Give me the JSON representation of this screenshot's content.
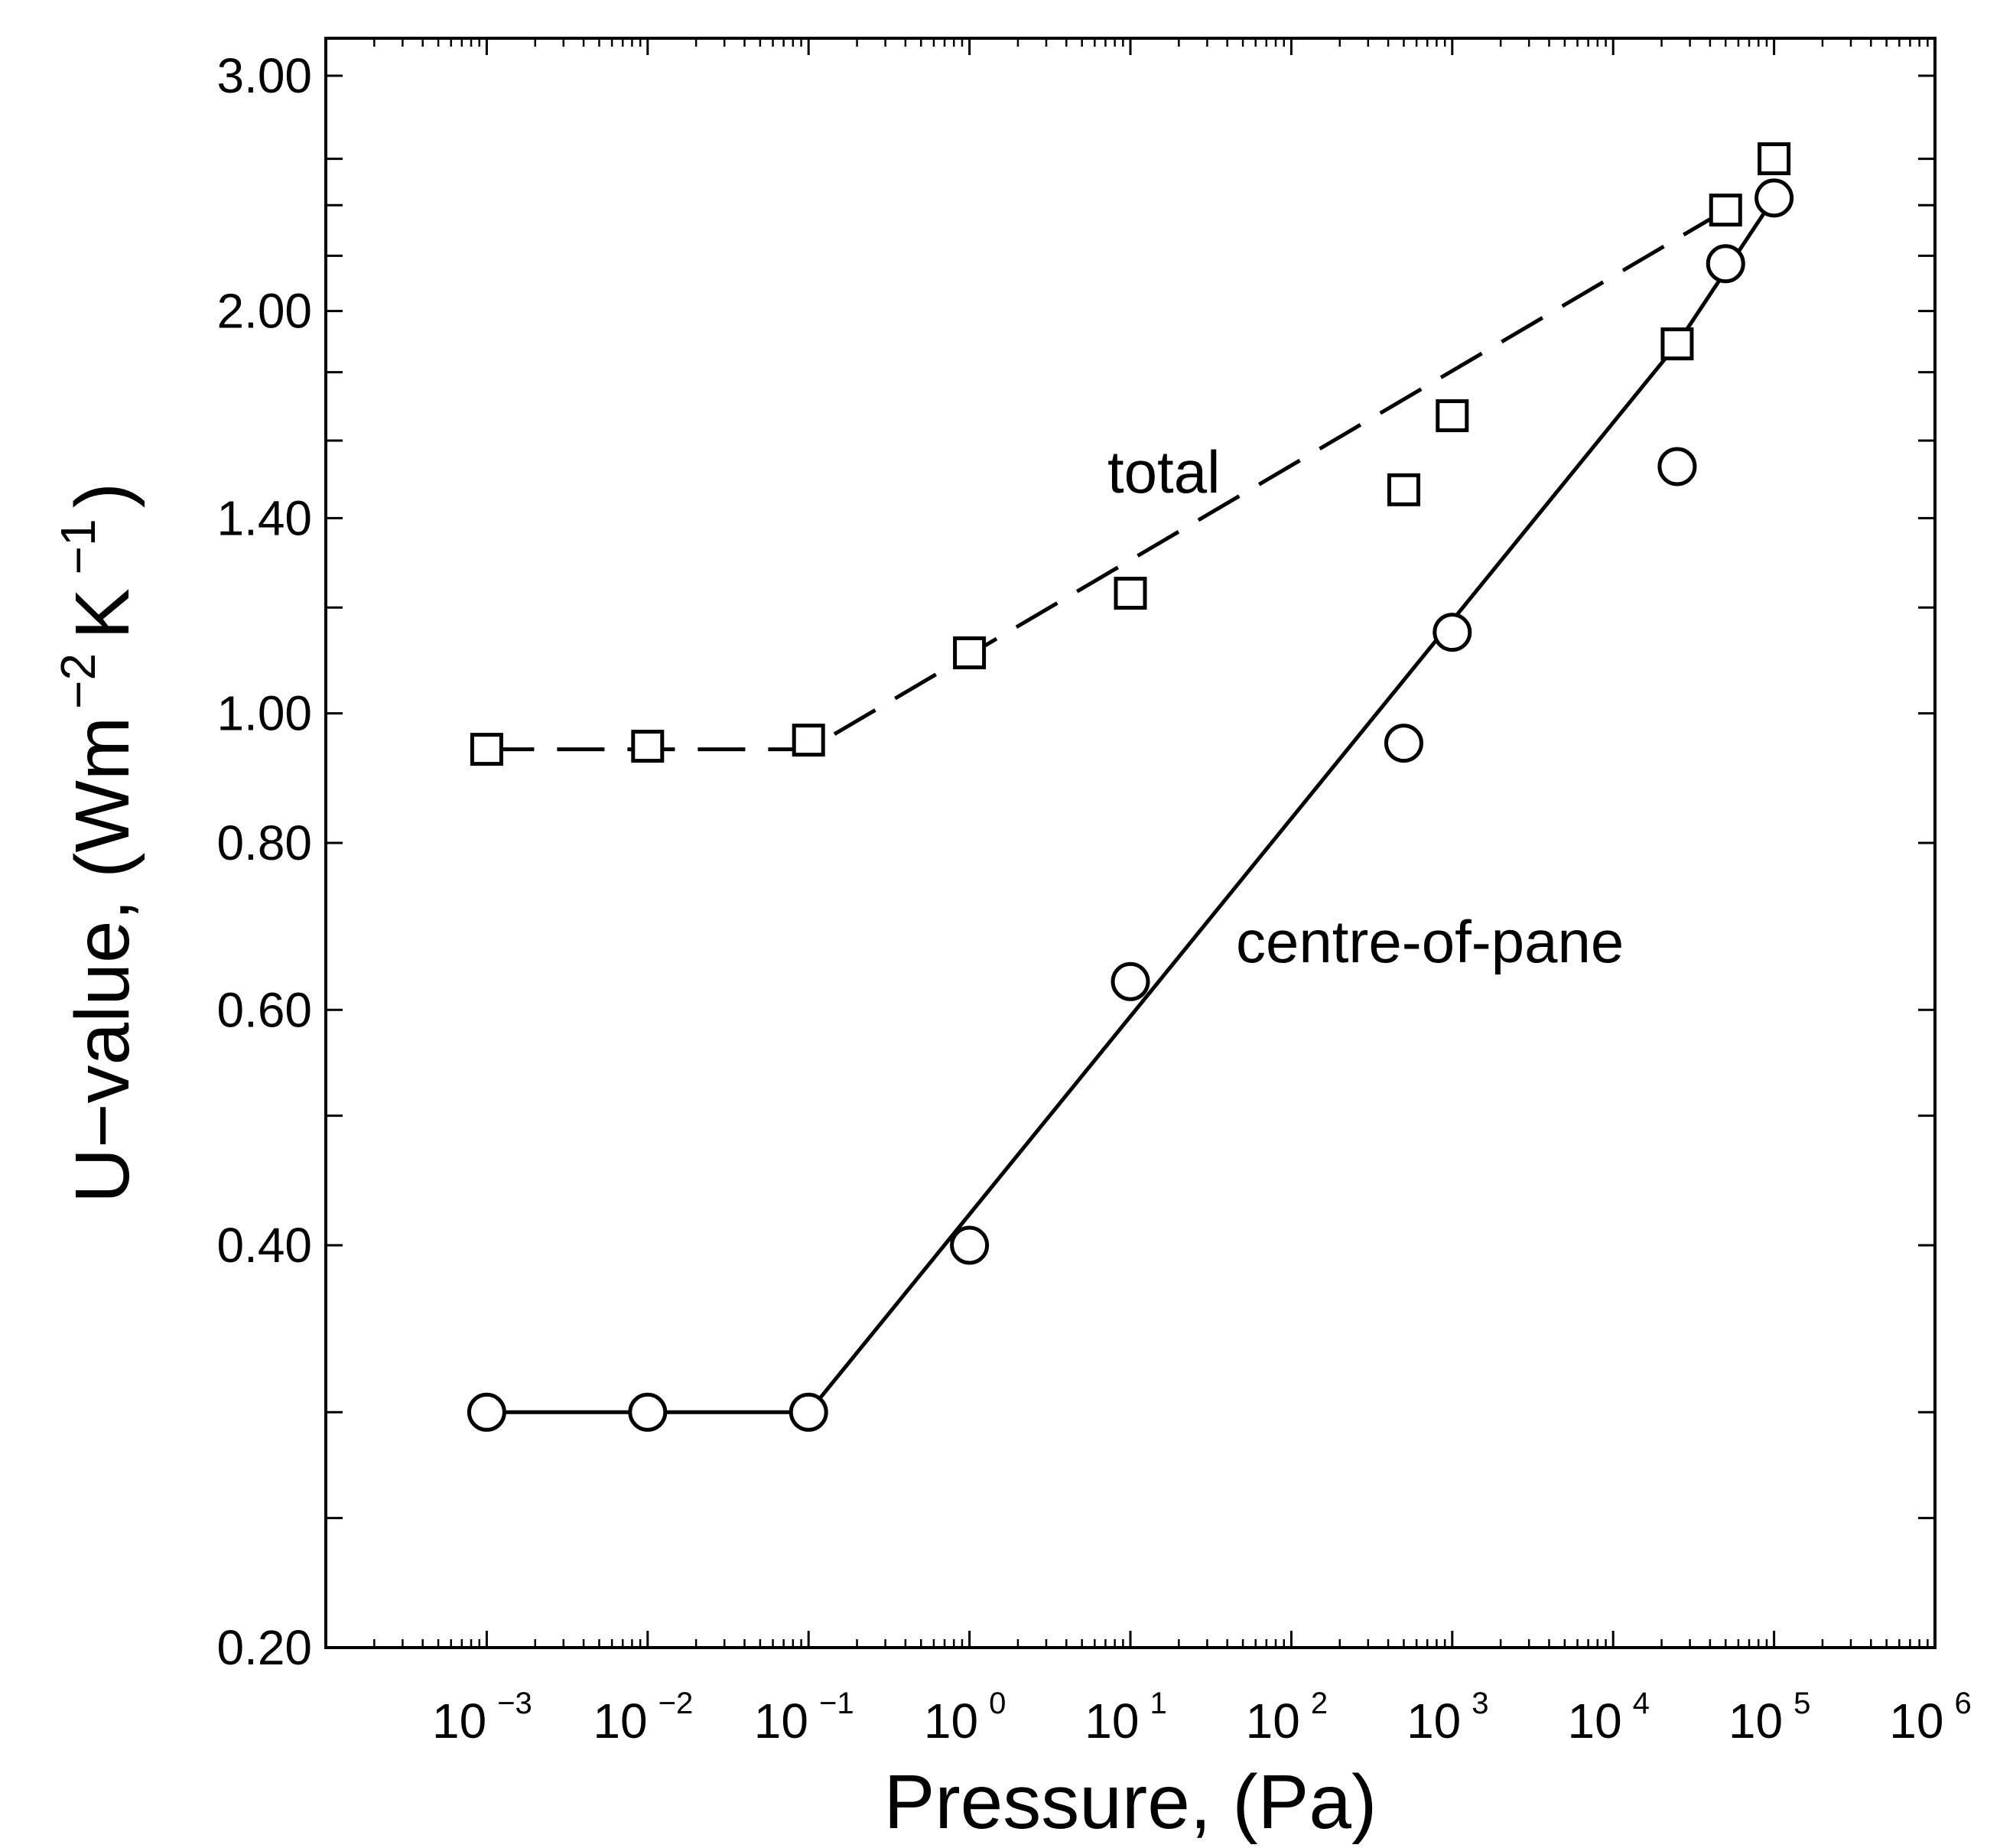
{
  "chart_data": {
    "type": "scatter",
    "xscale": "log",
    "yscale": "log",
    "xlim": [
      0.0001,
      1000000
    ],
    "ylim": [
      0.2,
      3.2
    ],
    "xlabel": "Pressure, (Pa)",
    "ylabel_main": "U−value, (Wm",
    "ylabel_sup1": "−2",
    "ylabel_k": "K",
    "ylabel_sup2": "−1",
    "ylabel_close": ")",
    "x_ticks": [
      {
        "base": "10",
        "exp": "−3"
      },
      {
        "base": "10",
        "exp": "−2"
      },
      {
        "base": "10",
        "exp": "−1"
      },
      {
        "base": "10",
        "exp": "0"
      },
      {
        "base": "10",
        "exp": "1"
      },
      {
        "base": "10",
        "exp": "2"
      },
      {
        "base": "10",
        "exp": "3"
      },
      {
        "base": "10",
        "exp": "4"
      },
      {
        "base": "10",
        "exp": "5"
      },
      {
        "base": "10",
        "exp": "6"
      }
    ],
    "x_tick_values": [
      0.001,
      0.01,
      0.1,
      1,
      10,
      100,
      1000,
      10000,
      100000,
      1000000
    ],
    "y_ticks": [
      "3.00",
      "2.00",
      "1.40",
      "1.00",
      "0.80",
      "0.60",
      "0.40",
      "0.20"
    ],
    "y_tick_values": [
      3.0,
      2.0,
      1.4,
      1.0,
      0.8,
      0.6,
      0.4,
      0.2
    ],
    "y_minor_values": [
      2.6,
      2.4,
      2.2,
      1.8,
      1.6,
      1.2,
      0.5,
      0.3,
      0.25
    ],
    "series": [
      {
        "name": "total",
        "marker": "square",
        "line_style": "dashed",
        "x": [
          0.001,
          0.01,
          0.1,
          1,
          10,
          500,
          1000,
          25000,
          50000,
          100000
        ],
        "y": [
          0.94,
          0.945,
          0.955,
          1.11,
          1.23,
          1.47,
          1.67,
          1.89,
          2.38,
          2.6
        ],
        "fit_x": [
          0.001,
          0.1,
          50000
        ],
        "fit_y": [
          0.94,
          0.94,
          2.38
        ]
      },
      {
        "name": "centre-of-pane",
        "marker": "circle",
        "line_style": "solid",
        "x": [
          0.001,
          0.01,
          0.1,
          1,
          10,
          500,
          1000,
          25000,
          50000,
          100000
        ],
        "y": [
          0.3,
          0.3,
          0.3,
          0.4,
          0.63,
          0.95,
          1.15,
          1.53,
          2.17,
          2.43
        ],
        "fit_x": [
          0.001,
          0.1,
          25000,
          100000
        ],
        "fit_y": [
          0.3,
          0.3,
          1.89,
          2.43
        ]
      }
    ],
    "annotations": [
      {
        "text": "total",
        "x": 1,
        "y": 1.5
      },
      {
        "text": "centre-of-pane",
        "x": 45,
        "y": 0.67
      }
    ]
  }
}
